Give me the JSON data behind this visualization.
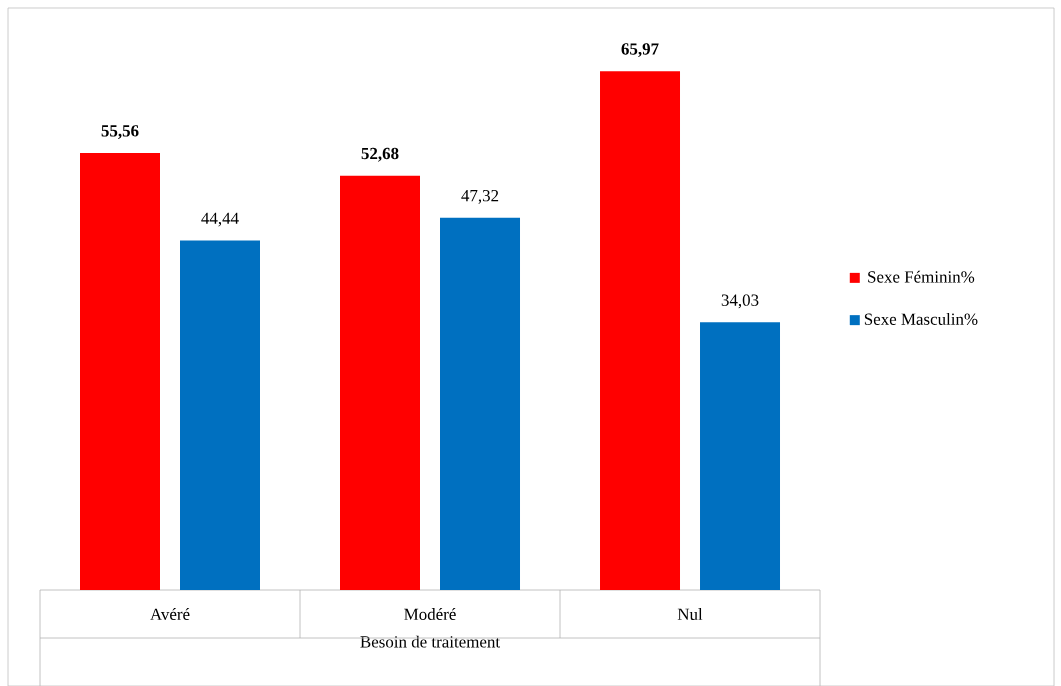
{
  "chart_data": {
    "type": "bar",
    "xlabel": "Besoin de traitement",
    "categories": [
      "Avéré",
      "Modéré",
      "Nul"
    ],
    "series": [
      {
        "name": "Sexe Féminin%",
        "color": "#ff0000",
        "values": [
          55.56,
          52.68,
          65.97
        ],
        "value_labels": [
          "**55,56**",
          "**52,68**",
          "**65,97**"
        ]
      },
      {
        "name": "Sexe Masculin%",
        "color": "#0070c0",
        "values": [
          44.44,
          47.32,
          34.03
        ],
        "value_labels": [
          "44,44",
          "47,32",
          "34,03"
        ]
      }
    ],
    "ylim": [
      0,
      74
    ],
    "legend": "right"
  }
}
